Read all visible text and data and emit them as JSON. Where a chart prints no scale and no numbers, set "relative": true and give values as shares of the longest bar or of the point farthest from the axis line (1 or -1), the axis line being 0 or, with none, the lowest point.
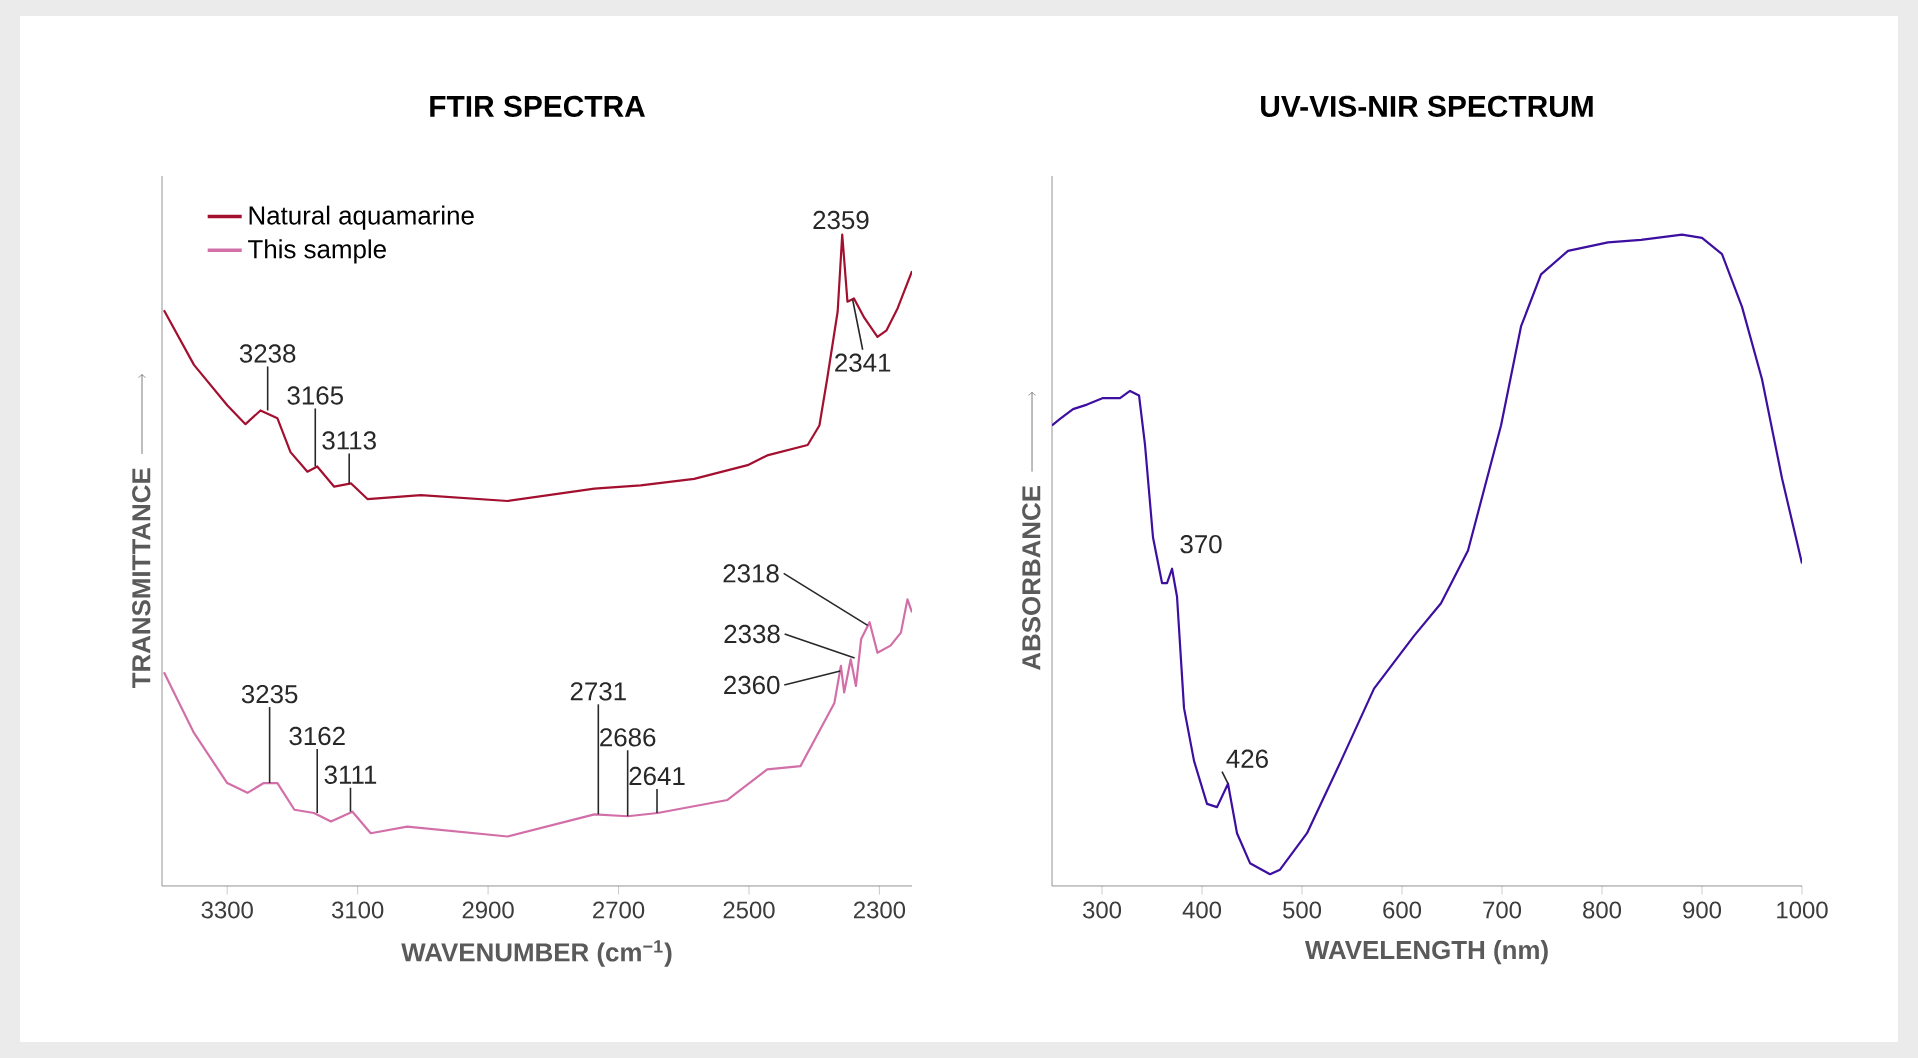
{
  "chart_data": [
    {
      "type": "line",
      "title": "FTIR SPECTRA",
      "xlabel": "WAVENUMBER (cm$^{−1}$)",
      "ylabel": "TRANSMITTANCE",
      "relative": true,
      "tick_labels": "x",
      "legend": "top left",
      "xlim": [
        3400,
        2250
      ],
      "xticks": [
        3300,
        3100,
        2900,
        2700,
        2500,
        2300
      ],
      "series": [
        {
          "name": "Natural aquamarine",
          "color": "#a3102f",
          "x": [
            3397,
            3351,
            3300,
            3272,
            3249,
            3223,
            3203,
            3177,
            3162,
            3136,
            3110,
            3085,
            3003,
            2870,
            2737,
            2666,
            2584,
            2502,
            2472,
            2410,
            2392,
            2380,
            2364,
            2357,
            2349,
            2339,
            2323,
            2303,
            2289,
            2272,
            2250
          ],
          "values": [
            0.884,
            0.8,
            0.738,
            0.709,
            0.73,
            0.718,
            0.666,
            0.636,
            0.644,
            0.613,
            0.618,
            0.594,
            0.6,
            0.591,
            0.61,
            0.615,
            0.625,
            0.646,
            0.661,
            0.677,
            0.707,
            0.779,
            0.882,
            1.0,
            0.897,
            0.902,
            0.872,
            0.843,
            0.853,
            0.887,
            0.944
          ]
        },
        {
          "name": "This sample",
          "color": "#d36fa8",
          "x": [
            3397,
            3351,
            3300,
            3269,
            3244,
            3223,
            3197,
            3167,
            3141,
            3108,
            3080,
            3024,
            2870,
            2737,
            2686,
            2640,
            2533,
            2472,
            2421,
            2369,
            2359,
            2354,
            2344,
            2336,
            2328,
            2315,
            2303,
            2283,
            2267,
            2257,
            2250
          ],
          "values": [
            0.328,
            0.235,
            0.158,
            0.143,
            0.158,
            0.158,
            0.117,
            0.112,
            0.099,
            0.114,
            0.081,
            0.091,
            0.076,
            0.11,
            0.107,
            0.112,
            0.132,
            0.179,
            0.184,
            0.281,
            0.338,
            0.297,
            0.348,
            0.307,
            0.379,
            0.405,
            0.358,
            0.369,
            0.389,
            0.44,
            0.42
          ]
        }
      ],
      "annotations": [
        {
          "text": "3238",
          "x": 3238,
          "y": 0.73
        },
        {
          "text": "3165",
          "x": 3165,
          "y": 0.644
        },
        {
          "text": "3113",
          "x": 3113,
          "y": 0.618
        },
        {
          "text": "2359",
          "x": 2359,
          "y": 1.0
        },
        {
          "text": "2341",
          "x": 2341,
          "y": 0.9
        },
        {
          "text": "3235",
          "x": 3235,
          "y": 0.158
        },
        {
          "text": "3162",
          "x": 3162,
          "y": 0.112
        },
        {
          "text": "3111",
          "x": 3111,
          "y": 0.114
        },
        {
          "text": "2731",
          "x": 2731,
          "y": 0.11
        },
        {
          "text": "2686",
          "x": 2686,
          "y": 0.107
        },
        {
          "text": "2641",
          "x": 2641,
          "y": 0.112
        },
        {
          "text": "2318",
          "x": 2318,
          "y": 0.4
        },
        {
          "text": "2338",
          "x": 2338,
          "y": 0.35
        },
        {
          "text": "2360",
          "x": 2360,
          "y": 0.33
        }
      ]
    },
    {
      "type": "line",
      "title": "UV-VIS-NIR SPECTRUM",
      "xlabel": "WAVELENGTH (nm)",
      "ylabel": "ABSORBANCE",
      "relative": true,
      "tick_labels": "x",
      "xlim": [
        250,
        1000
      ],
      "xticks": [
        300,
        400,
        500,
        600,
        700,
        800,
        900,
        1000
      ],
      "series": [
        {
          "color": "#3d0fa0",
          "x": [
            250,
            258,
            271,
            285,
            301,
            318,
            328,
            337,
            343,
            351,
            360,
            365,
            370,
            375,
            382,
            392,
            405,
            415,
            426,
            435,
            448,
            468,
            478,
            505,
            539,
            572,
            612,
            639,
            666,
            699,
            719,
            739,
            766,
            806,
            839,
            880,
            900,
            920,
            940,
            960,
            980,
            1000
          ],
          "values": [
            0.707,
            0.717,
            0.732,
            0.739,
            0.749,
            0.749,
            0.76,
            0.753,
            0.677,
            0.535,
            0.465,
            0.465,
            0.487,
            0.444,
            0.273,
            0.192,
            0.126,
            0.121,
            0.157,
            0.081,
            0.035,
            0.018,
            0.025,
            0.081,
            0.192,
            0.303,
            0.384,
            0.434,
            0.515,
            0.707,
            0.859,
            0.939,
            0.975,
            0.988,
            0.992,
            1.0,
            0.995,
            0.97,
            0.889,
            0.778,
            0.626,
            0.495
          ]
        }
      ],
      "annotations": [
        {
          "text": "370",
          "x": 370,
          "y": 0.487
        },
        {
          "text": "426",
          "x": 426,
          "y": 0.157
        }
      ]
    }
  ]
}
